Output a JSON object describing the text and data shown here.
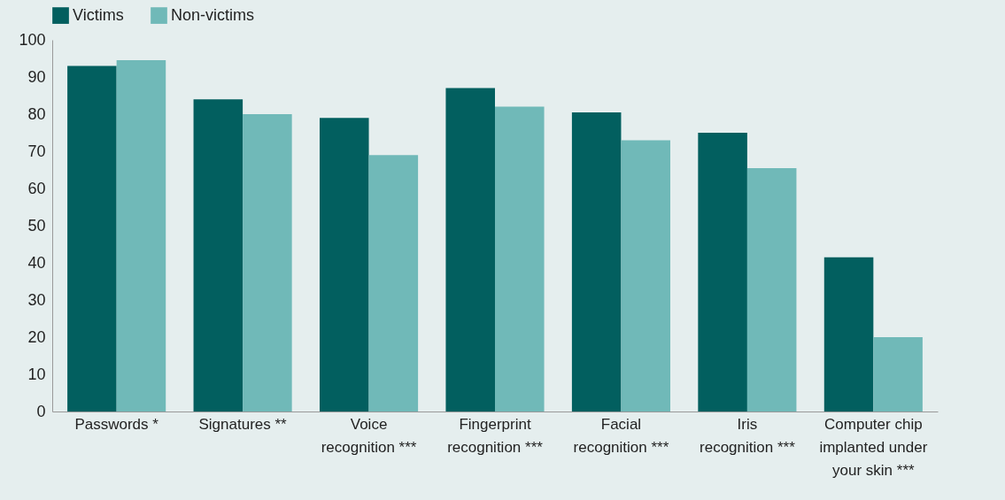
{
  "chart_data": {
    "type": "bar",
    "categories": [
      "Passwords *",
      "Signatures **",
      "Voice recognition ***",
      "Fingerprint recognition ***",
      "Facial recognition ***",
      "Iris recognition ***",
      "Computer chip implanted under your skin ***"
    ],
    "series": [
      {
        "name": "Victims",
        "color": "#025f5f",
        "values": [
          93,
          84,
          79,
          87,
          80.5,
          75,
          41.5
        ]
      },
      {
        "name": "Non-victims",
        "color": "#70b9b8",
        "values": [
          94.5,
          80,
          69,
          82,
          73,
          65.5,
          20
        ]
      }
    ],
    "ylim": [
      0,
      100
    ],
    "yticks": [
      0,
      10,
      20,
      30,
      40,
      50,
      60,
      70,
      80,
      90,
      100
    ],
    "grid": false,
    "legend": "top"
  }
}
